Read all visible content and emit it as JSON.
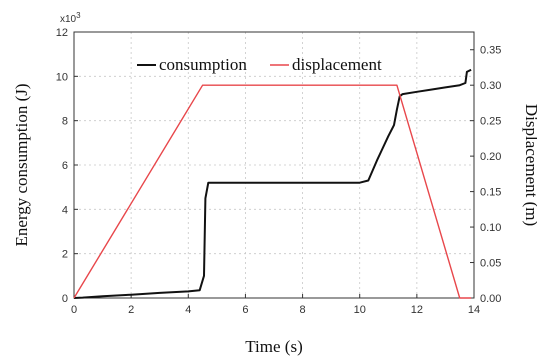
{
  "chart_data": {
    "type": "line",
    "xlabel": "Time (s)",
    "ylabel": "Energy consumption (J)",
    "y2label": "Displacement (m)",
    "y_multiplier": "x10",
    "y_multiplier_exp": "3",
    "xlim": [
      0,
      14
    ],
    "ylim": [
      0,
      12
    ],
    "y2lim": [
      0,
      0.375
    ],
    "x_ticks": [
      "0",
      "2",
      "4",
      "6",
      "8",
      "10",
      "12",
      "14"
    ],
    "y_ticks": [
      "0",
      "2",
      "4",
      "6",
      "8",
      "10",
      "12"
    ],
    "y2_ticks": [
      "0.00",
      "0.05",
      "0.10",
      "0.15",
      "0.20",
      "0.25",
      "0.30",
      "0.35"
    ],
    "legend_position": "top",
    "series": [
      {
        "name": "consumption",
        "color": "#111111",
        "axis": "left",
        "x": [
          0,
          0.3,
          1,
          2,
          3,
          4,
          4.4,
          4.55,
          4.6,
          4.7,
          5,
          6,
          7,
          8,
          9,
          10,
          10.3,
          10.6,
          11,
          11.2,
          11.3,
          11.4,
          11.5,
          12,
          12.5,
          13,
          13.5,
          13.7,
          13.75,
          13.9
        ],
        "values": [
          0,
          0.02,
          0.08,
          0.15,
          0.23,
          0.3,
          0.35,
          1.0,
          4.5,
          5.2,
          5.2,
          5.2,
          5.2,
          5.2,
          5.2,
          5.2,
          5.3,
          6.2,
          7.3,
          7.8,
          8.5,
          9.1,
          9.2,
          9.3,
          9.4,
          9.5,
          9.6,
          9.7,
          10.2,
          10.3
        ]
      },
      {
        "name": "displacement",
        "color": "#e8474b",
        "axis": "right",
        "x": [
          0,
          4.5,
          11.3,
          13.5,
          13.9
        ],
        "values": [
          0,
          0.3,
          0.3,
          0,
          0
        ]
      }
    ]
  }
}
